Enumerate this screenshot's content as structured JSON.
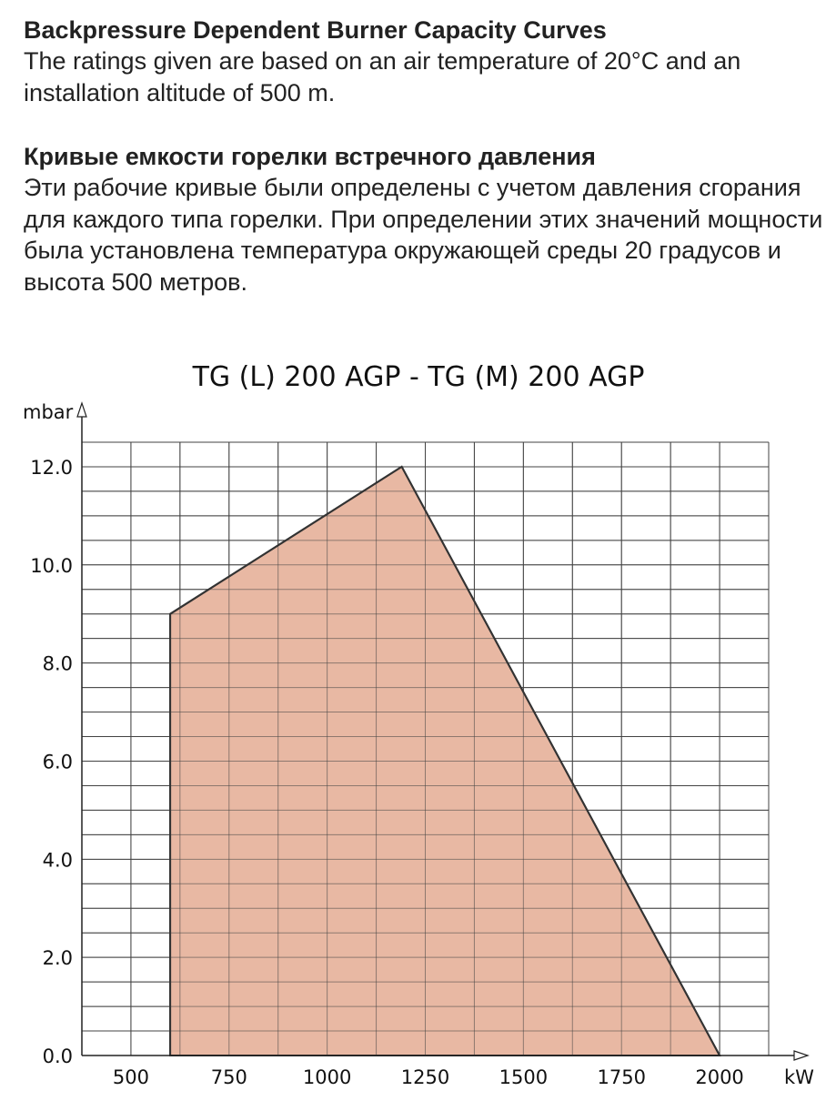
{
  "text": {
    "en_heading": "Backpressure Dependent Burner Capacity Curves",
    "en_body": "The ratings given are based on an air temperature of 20°C and an installation altitude of 500 m.",
    "ru_heading": "Кривые емкости горелки встречного давления",
    "ru_body": "Эти рабочие кривые были определены с учетом давления сгорания для каждого типа горелки. При определении этих значений мощности была установлена температура окружающей среды 20 градусов и высота 500 метров."
  },
  "chart_data": {
    "type": "area",
    "title": "TG (L) 200 AGP - TG (M) 200 AGP",
    "xlabel": "kW",
    "ylabel": "mbar",
    "xlim": [
      375,
      2125
    ],
    "ylim": [
      0,
      12.5
    ],
    "x_ticks": [
      500,
      750,
      1000,
      1250,
      1500,
      1750,
      2000
    ],
    "x_tick_labels": [
      "500",
      "750",
      "1000",
      "1250",
      "1500",
      "1750",
      "2000"
    ],
    "y_ticks": [
      0,
      2,
      4,
      6,
      8,
      10,
      12
    ],
    "y_tick_labels": [
      "0.0",
      "2.0",
      "4.0",
      "6.0",
      "8.0",
      "10.0",
      "12.0"
    ],
    "grid": true,
    "grid_x_step": 125,
    "grid_y_step": 0.5,
    "fill_color": "#e8b8a3",
    "line_color": "#333333",
    "series": [
      {
        "x": [
          600,
          600,
          1190,
          2000
        ],
        "y": [
          0,
          9.0,
          12.0,
          0
        ]
      }
    ]
  }
}
